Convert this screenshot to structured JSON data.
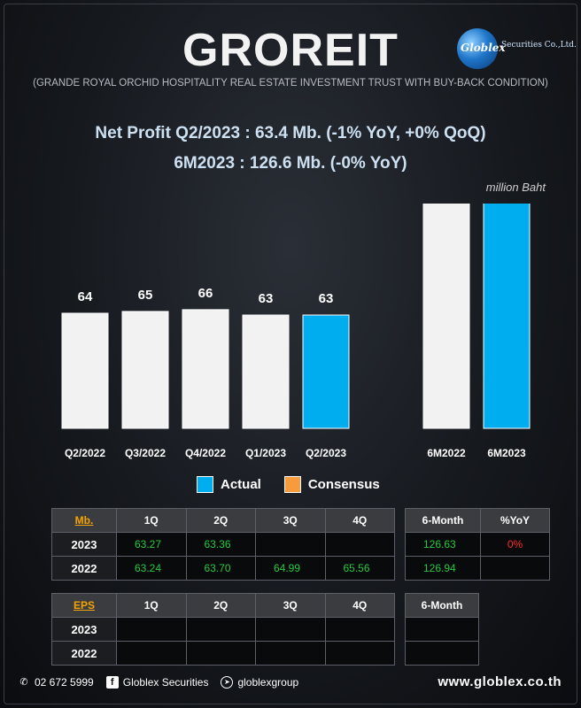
{
  "header": {
    "ticker": "GROREIT",
    "full_name": "(GRANDE ROYAL ORCHID HOSPITALITY REAL ESTATE INVESTMENT TRUST WITH BUY-BACK CONDITION)",
    "logo_text": "Globlex",
    "logo_sub": "Securities Co.,Ltd.",
    "headline_1": "Net Profit  Q2/2023 : 63.4 Mb. (-1% YoY, +0% QoQ)",
    "headline_2": "6M2023 : 126.6 Mb. (-0% YoY)",
    "unit": "million Baht"
  },
  "colors": {
    "actual": "#00adef",
    "consensus": "#f89b3c",
    "history": "#f2f2f2"
  },
  "chart_data": {
    "type": "bar",
    "categories": [
      "Q2/2022",
      "Q3/2022",
      "Q4/2022",
      "Q1/2023",
      "Q2/2023",
      "",
      "6M2022",
      "6M2023"
    ],
    "values": [
      64,
      65,
      66,
      63,
      63,
      null,
      127,
      127
    ],
    "highlight": [
      false,
      false,
      false,
      false,
      true,
      false,
      false,
      true
    ],
    "legend": [
      "Actual",
      "Consensus"
    ],
    "legend_placement": "bottom-center",
    "ylim": [
      0,
      140
    ],
    "grid": false
  },
  "profit_table": {
    "key": "Mb.",
    "columns": [
      "1Q",
      "2Q",
      "3Q",
      "4Q"
    ],
    "rows": [
      {
        "year": "2023",
        "values": [
          "63.27",
          "63.36",
          "",
          ""
        ]
      },
      {
        "year": "2022",
        "values": [
          "63.24",
          "63.70",
          "64.99",
          "65.56"
        ]
      }
    ],
    "side_columns": [
      "6-Month",
      "%YoY"
    ],
    "side_rows": [
      [
        "126.63",
        "0%"
      ],
      [
        "126.94",
        ""
      ]
    ]
  },
  "eps_table": {
    "key": "EPS",
    "columns": [
      "1Q",
      "2Q",
      "3Q",
      "4Q"
    ],
    "rows": [
      {
        "year": "2023",
        "values": [
          "",
          "",
          "",
          ""
        ]
      },
      {
        "year": "2022",
        "values": [
          "",
          "",
          "",
          ""
        ]
      }
    ],
    "side_columns": [
      "6-Month"
    ],
    "side_rows": [
      [
        ""
      ],
      [
        ""
      ]
    ]
  },
  "footer": {
    "phone": "02 672 5999",
    "facebook": "Globlex Securities",
    "telegram": "globlexgroup",
    "website": "www.globlex.co.th"
  }
}
